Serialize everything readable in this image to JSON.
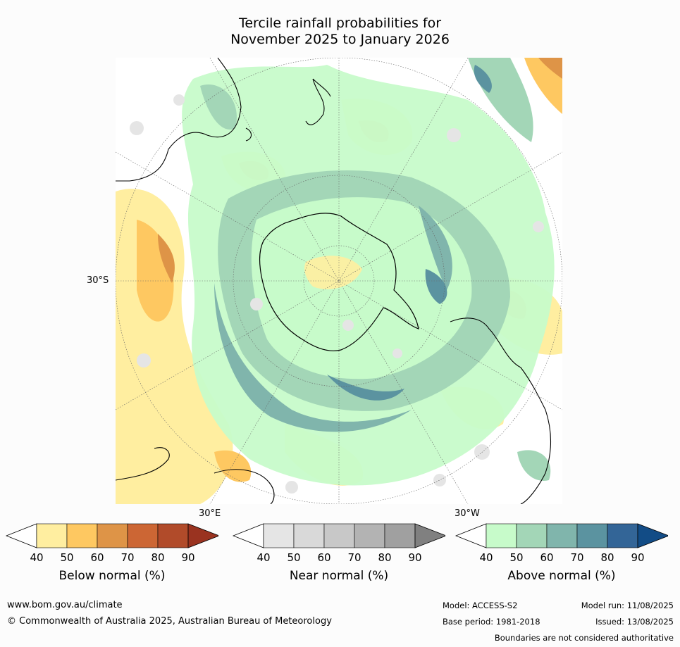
{
  "title": {
    "line1": "Tercile rainfall probabilities for",
    "line2": "November 2025 to January 2026"
  },
  "map": {
    "projection": "south polar stereographic",
    "labels": {
      "lat_30s": "30°S",
      "lon_30e": "30°E",
      "lon_30w": "30°W"
    }
  },
  "legends": [
    {
      "caption": "Below normal (%)",
      "ticks": [
        "40",
        "50",
        "60",
        "70",
        "80",
        "90"
      ],
      "colors": [
        "#ffffff",
        "#ffeea0",
        "#fec861",
        "#de9447",
        "#cc6634",
        "#b14b2a",
        "#9a3320"
      ]
    },
    {
      "caption": "Near normal (%)",
      "ticks": [
        "40",
        "50",
        "60",
        "70",
        "80",
        "90"
      ],
      "colors": [
        "#ffffff",
        "#e5e5e5",
        "#d9d9d9",
        "#c8c8c8",
        "#b3b3b3",
        "#a0a0a0",
        "#808080"
      ]
    },
    {
      "caption": "Above normal (%)",
      "ticks": [
        "40",
        "50",
        "60",
        "70",
        "80",
        "90"
      ],
      "colors": [
        "#ffffff",
        "#c7fbca",
        "#a3d6b7",
        "#80b5ac",
        "#5b93a0",
        "#336597",
        "#124c86"
      ]
    }
  ],
  "footer": {
    "website": "www.bom.gov.au/climate",
    "copyright": "© Commonwealth of Australia 2025, Australian Bureau of Meteorology",
    "model": "Model: ACCESS-S2",
    "model_run": "Model run: 11/08/2025",
    "base_period": "Base period: 1981-2018",
    "issued": "Issued: 13/08/2025",
    "disclaimer": "Boundaries are not considered authoritative"
  }
}
